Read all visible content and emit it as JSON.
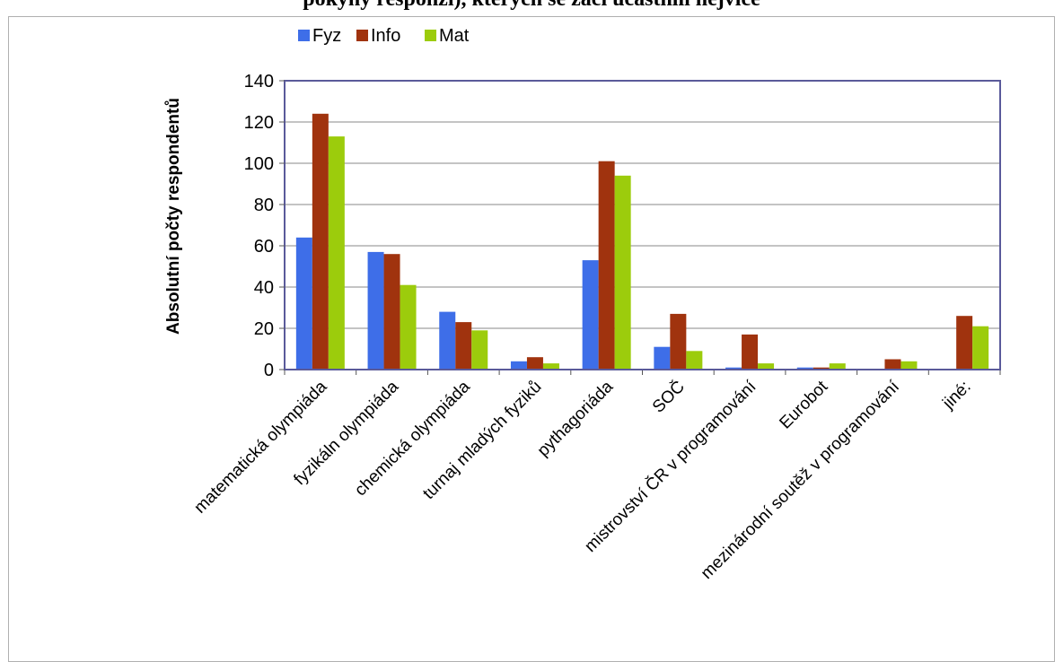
{
  "header": {
    "title_partial": "pokyny responzí), kterých se žáci účastnili nejvíce"
  },
  "chart_data": {
    "type": "bar",
    "title": "",
    "xlabel": "",
    "ylabel": "Absolutní počty respondentů",
    "ylim": [
      0,
      140
    ],
    "yticks": [
      0,
      20,
      40,
      60,
      80,
      100,
      120,
      140
    ],
    "grid": true,
    "legend_position": "top",
    "categories": [
      "matematická olympiáda",
      "fyzikáln olympiáda",
      "chemická olympiáda",
      "turnaj mladých fyziků",
      "pythagoriáda",
      "SOČ",
      "mistrovství ČR v programování",
      "Eurobot",
      "mezinárodní soutěž v programování",
      "jiné:"
    ],
    "series": [
      {
        "name": "Fyz",
        "color": "#3e6ee8",
        "values": [
          64,
          57,
          28,
          4,
          53,
          11,
          1,
          1,
          0,
          0
        ]
      },
      {
        "name": "Info",
        "color": "#a0330e",
        "values": [
          124,
          56,
          23,
          6,
          101,
          27,
          17,
          1,
          5,
          26
        ]
      },
      {
        "name": "Mat",
        "color": "#9ccc0c",
        "values": [
          113,
          41,
          19,
          3,
          94,
          9,
          3,
          3,
          4,
          21
        ]
      }
    ],
    "colors": {
      "plot_border": "#5a5a9a",
      "grid": "#888888"
    }
  }
}
